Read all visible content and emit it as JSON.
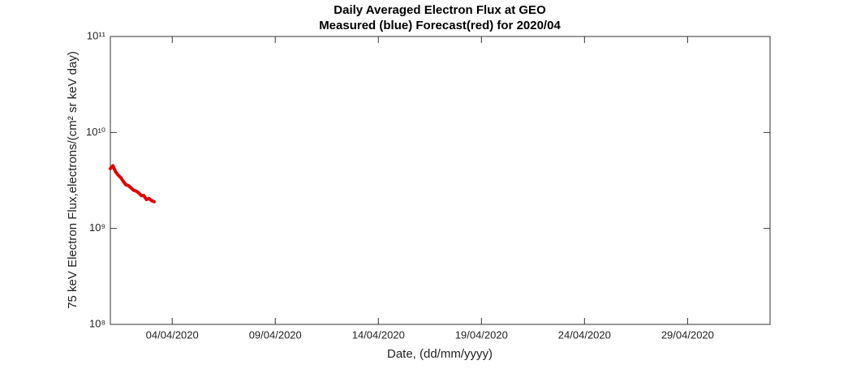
{
  "chart_data": {
    "type": "line",
    "title": "Daily Averaged Electron Flux at GEO",
    "subtitle": "Measured (blue) Forecast(red) for 2020/04",
    "x_label": "Date, (dd/mm/yyyy)",
    "y_label": "75 keV Electron Flux,electrons/(cm² sr keV day)",
    "x": [
      "2020-04-01T00:00",
      "2020-04-01T03:00",
      "2020-04-01T06:00",
      "2020-04-01T09:00",
      "2020-04-01T12:00",
      "2020-04-01T15:00",
      "2020-04-01T18:00",
      "2020-04-01T21:00",
      "2020-04-02T00:00",
      "2020-04-02T03:00",
      "2020-04-02T06:00",
      "2020-04-02T09:00",
      "2020-04-02T12:00",
      "2020-04-02T15:00",
      "2020-04-02T18:00",
      "2020-04-02T21:00",
      "2020-04-03T00:00",
      "2020-04-03T03:00"
    ],
    "series": [
      {
        "color": "#e00000",
        "values": [
          4200000000,
          4500000000,
          3900000000,
          3600000000,
          3400000000,
          3100000000,
          2850000000,
          2800000000,
          2650000000,
          2500000000,
          2450000000,
          2350000000,
          2200000000,
          2200000000,
          2000000000,
          2050000000,
          1950000000,
          1900000000
        ]
      }
    ],
    "xlim": [
      "2020-04-01",
      "2020-05-03"
    ],
    "xticks": [
      {
        "value": "2020-04-04",
        "label": "04/04/2020"
      },
      {
        "value": "2020-04-09",
        "label": "09/04/2020"
      },
      {
        "value": "2020-04-14",
        "label": "14/04/2020"
      },
      {
        "value": "2020-04-19",
        "label": "19/04/2020"
      },
      {
        "value": "2020-04-24",
        "label": "24/04/2020"
      },
      {
        "value": "2020-04-29",
        "label": "29/04/2020"
      }
    ],
    "ylim": [
      100000000,
      100000000000
    ],
    "yticks": [
      {
        "value": 100000000,
        "label": "10⁸"
      },
      {
        "value": 1000000000,
        "label": "10⁹"
      },
      {
        "value": 10000000000,
        "label": "10¹⁰"
      },
      {
        "value": 100000000000,
        "label": "10¹¹"
      }
    ],
    "log_y": true,
    "grid": false
  }
}
